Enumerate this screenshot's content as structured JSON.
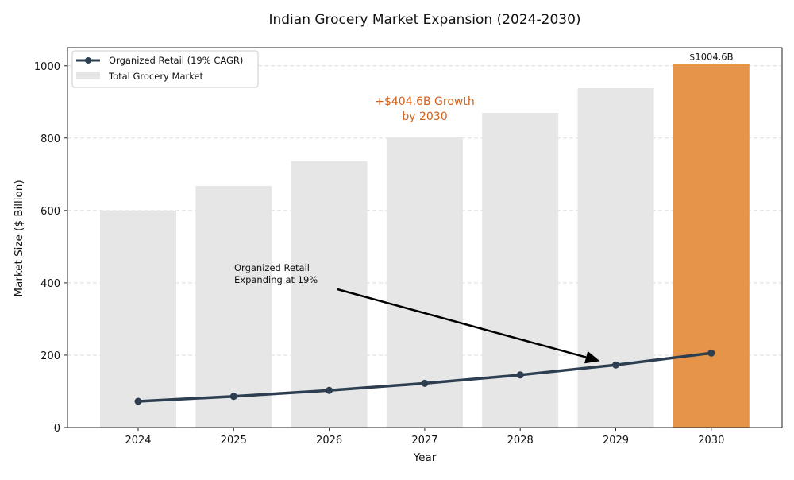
{
  "chart_data": {
    "type": "bar",
    "title": "Indian Grocery Market Expansion (2024-2030)",
    "xlabel": "Year",
    "ylabel": "Market Size ($ Billion)",
    "ylim": [
      0,
      1050
    ],
    "yticks": [
      "0",
      "200",
      "400",
      "600",
      "800",
      "1000"
    ],
    "ytick_values": [
      0,
      200,
      400,
      600,
      800,
      1000
    ],
    "grid": "y-dashed",
    "categories": [
      "2024",
      "2025",
      "2026",
      "2027",
      "2028",
      "2029",
      "2030"
    ],
    "series": [
      {
        "name": "Total Grocery Market",
        "type": "bar",
        "values": [
          600,
          668,
          736,
          802,
          870,
          938,
          1004.6
        ],
        "color": "#E6E6E6",
        "highlight_index": 6,
        "highlight_color": "#E5944A"
      },
      {
        "name": "Organized Retail (19% CAGR)",
        "type": "line",
        "values": [
          72.5,
          86.3,
          102.7,
          122.2,
          145.4,
          173.0,
          205.9
        ],
        "color": "#2C3E50"
      }
    ],
    "legend": {
      "position": "top-left",
      "entries": [
        "Organized Retail (19% CAGR)",
        "Total Grocery Market"
      ]
    },
    "annotations": {
      "bar_label": "$1004.6B",
      "growth_line1": "+$404.6B Growth",
      "growth_line2": "by 2030",
      "arrow_text_line1": "Organized Retail",
      "arrow_text_line2": "Expanding at 19%",
      "arrow_target_category": "2029",
      "arrow_target_value": 175
    }
  }
}
